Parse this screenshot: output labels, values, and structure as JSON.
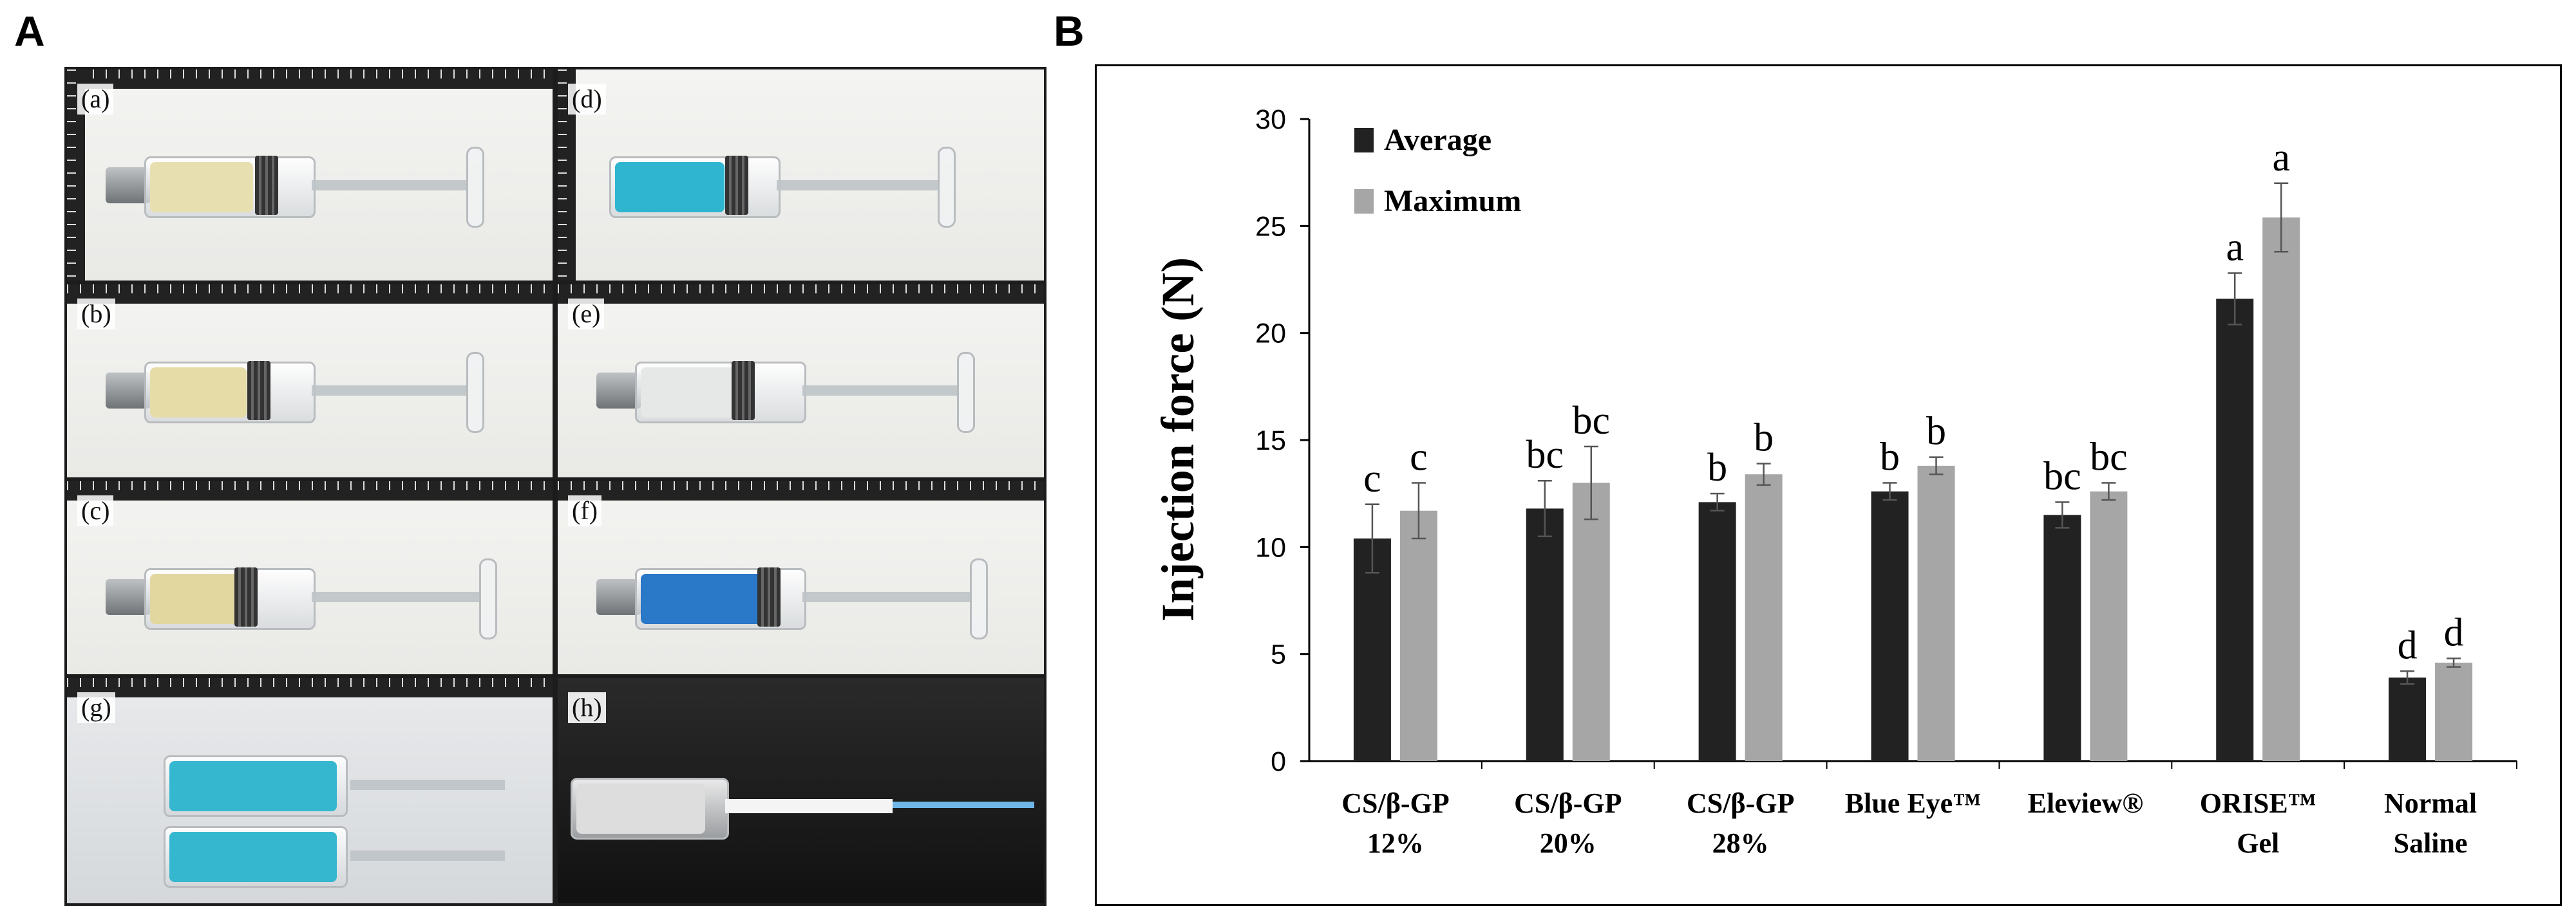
{
  "panels": {
    "a": "A",
    "b": "B"
  },
  "photos": [
    {
      "label": "(a)",
      "fluid": "#e8dfb0"
    },
    {
      "label": "(d)",
      "fluid": "#2fb5cf"
    },
    {
      "label": "(b)",
      "fluid": "#e6dca8"
    },
    {
      "label": "(e)",
      "fluid": "#e5e8e6"
    },
    {
      "label": "(c)",
      "fluid": "#e3d7a0"
    },
    {
      "label": "(f)",
      "fluid": "#2a78c8"
    },
    {
      "label": "(g)",
      "fluid": "#35b7d0"
    },
    {
      "label": "(h)",
      "fluid": "#dddddd"
    }
  ],
  "chart_data": {
    "type": "bar",
    "title": "",
    "ylabel": "Injection force (N)",
    "xlabel": "",
    "ylim": [
      0,
      30
    ],
    "yticks": [
      0,
      5,
      10,
      15,
      20,
      25,
      30
    ],
    "categories": [
      [
        "CS/β-GP",
        "12%"
      ],
      [
        "CS/β-GP",
        "20%"
      ],
      [
        "CS/β-GP",
        "28%"
      ],
      [
        "Blue Eye™"
      ],
      [
        "Eleview®"
      ],
      [
        "ORISE™",
        "Gel"
      ],
      [
        "Normal",
        "Saline"
      ]
    ],
    "legend_position": "top-left",
    "series": [
      {
        "name": "Average",
        "color": "#222222",
        "values": [
          10.4,
          11.8,
          12.1,
          12.6,
          11.5,
          21.6,
          3.9
        ],
        "errors": [
          1.6,
          1.3,
          0.4,
          0.4,
          0.6,
          1.2,
          0.3
        ],
        "labels": [
          "c",
          "bc",
          "b",
          "b",
          "bc",
          "a",
          "d"
        ]
      },
      {
        "name": "Maximum",
        "color": "#a6a6a6",
        "values": [
          11.7,
          13.0,
          13.4,
          13.8,
          12.6,
          25.4,
          4.6
        ],
        "errors": [
          1.3,
          1.7,
          0.5,
          0.4,
          0.4,
          1.6,
          0.2
        ],
        "labels": [
          "c",
          "bc",
          "b",
          "b",
          "bc",
          "a",
          "d"
        ]
      }
    ]
  }
}
